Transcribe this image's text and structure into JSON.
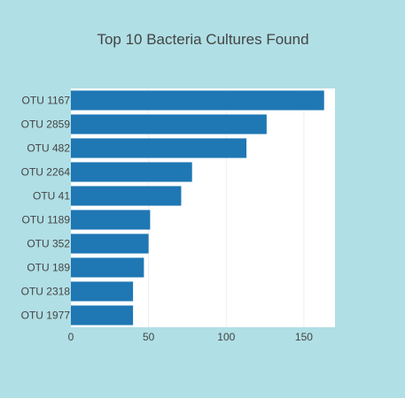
{
  "chart_data": {
    "type": "bar",
    "orientation": "horizontal",
    "title": "Top 10 Bacteria Cultures Found",
    "xlabel": "",
    "ylabel": "",
    "categories": [
      "OTU 1167",
      "OTU 2859",
      "OTU 482",
      "OTU 2264",
      "OTU 41",
      "OTU 1189",
      "OTU 352",
      "OTU 189",
      "OTU 2318",
      "OTU 1977"
    ],
    "values": [
      163,
      126,
      113,
      78,
      71,
      51,
      50,
      47,
      40,
      40
    ],
    "xlim": [
      0,
      170
    ],
    "xticks": [
      0,
      50,
      100,
      150
    ],
    "grid": true,
    "bar_color": "#1f77b4",
    "plot_background": "#ffffff",
    "paper_background": "#b0dfe5"
  }
}
